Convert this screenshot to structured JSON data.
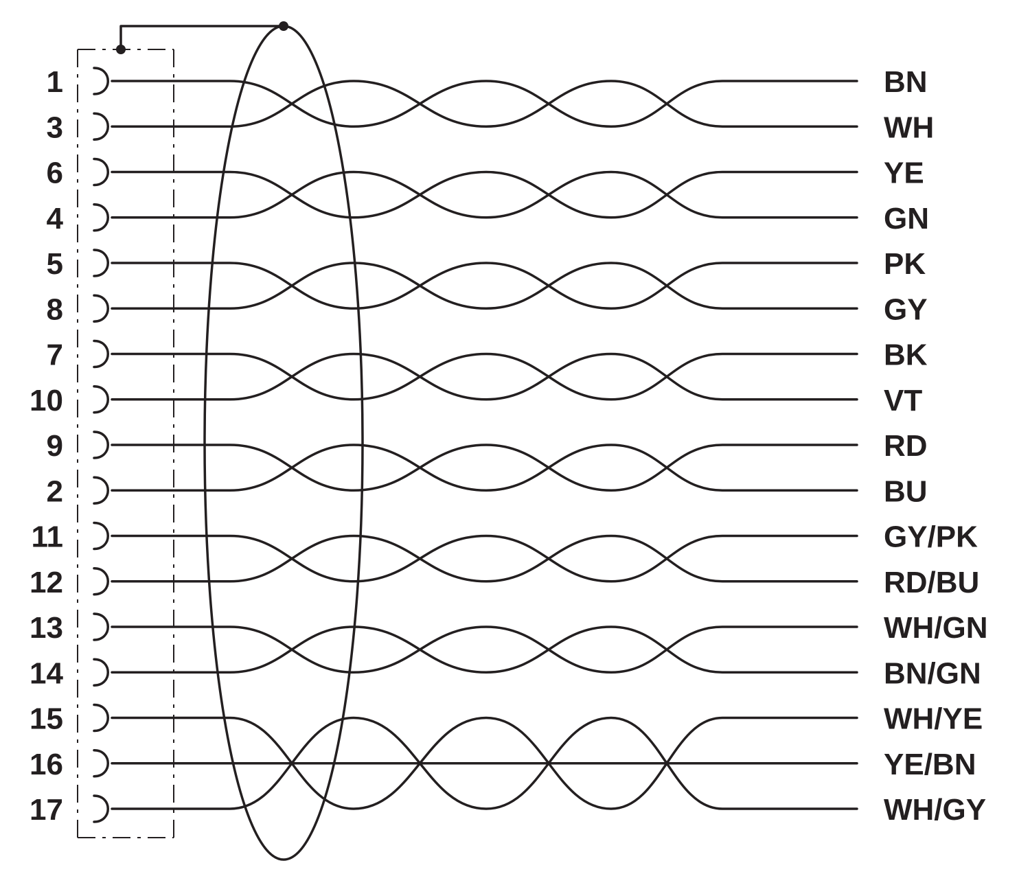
{
  "connector": {
    "pins": [
      "1",
      "3",
      "6",
      "4",
      "5",
      "8",
      "7",
      "10",
      "9",
      "2",
      "11",
      "12",
      "13",
      "14",
      "15",
      "16",
      "17"
    ]
  },
  "wires": {
    "colors": [
      "BN",
      "WH",
      "YE",
      "GN",
      "PK",
      "GY",
      "BK",
      "VT",
      "RD",
      "BU",
      "GY/PK",
      "RD/BU",
      "WH/GN",
      "BN/GN",
      "WH/YE",
      "YE/BN",
      "WH/GY"
    ]
  },
  "twisting": {
    "pairs": [
      [
        0,
        1
      ],
      [
        2,
        3
      ],
      [
        4,
        5
      ],
      [
        6,
        7
      ],
      [
        8,
        9
      ],
      [
        10,
        11
      ],
      [
        12,
        13
      ]
    ],
    "triples": [
      [
        14,
        15,
        16
      ]
    ]
  },
  "style": {
    "ink": "#231f20",
    "background": "#ffffff"
  }
}
